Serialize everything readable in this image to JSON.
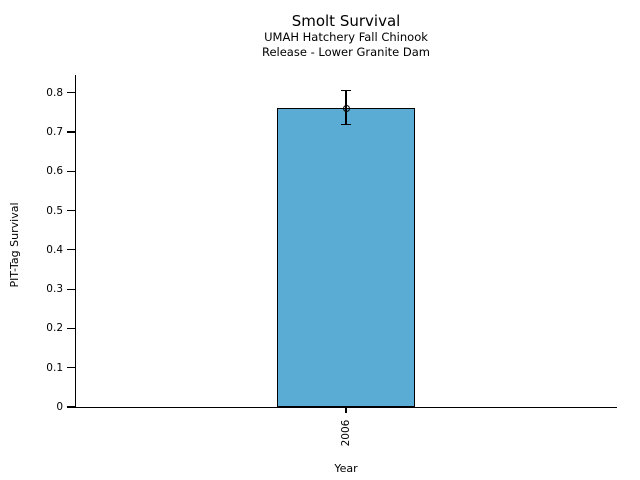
{
  "chart_data": {
    "type": "bar",
    "title": "Smolt Survival",
    "subtitle_lines": [
      "UMAH Hatchery Fall Chinook",
      "Release - Lower Granite Dam"
    ],
    "xlabel": "Year",
    "ylabel": "PIT-Tag Survival",
    "categories": [
      "2006"
    ],
    "values": [
      0.76
    ],
    "error_bars": [
      {
        "upper": 0.805,
        "lower": 0.72
      }
    ],
    "marker": "open-circle",
    "ylim": [
      0,
      0.845
    ],
    "yticks": [
      0,
      0.1,
      0.2,
      0.3,
      0.4,
      0.5,
      0.6,
      0.7,
      0.8
    ],
    "ytick_labels": [
      "0",
      "0.1",
      "0.2",
      "0.3",
      "0.4",
      "0.5",
      "0.6",
      "0.7",
      "0.8"
    ],
    "grid": false,
    "legend": null,
    "colors": {
      "bar_fill": "#5BACD5",
      "bar_edge": "#000000",
      "error_bar": "#000000",
      "text": "#000000",
      "background": "#FFFFFF"
    }
  }
}
